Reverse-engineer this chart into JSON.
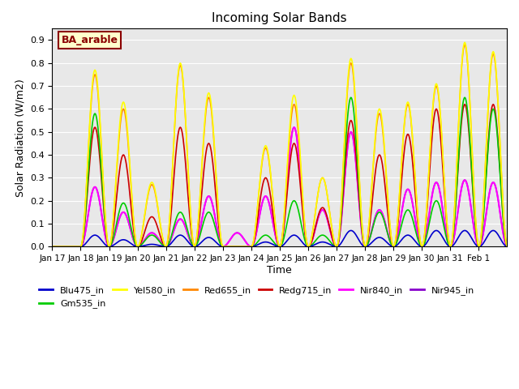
{
  "title": "Incoming Solar Bands",
  "xlabel": "Time",
  "ylabel": "Solar Radiation (W/m2)",
  "annotation": "BA_arable",
  "ylim": [
    0,
    0.95
  ],
  "yticks": [
    0.0,
    0.1,
    0.2,
    0.3,
    0.4,
    0.5,
    0.6,
    0.7,
    0.8,
    0.9
  ],
  "bg_color": "#e8e8e8",
  "series": {
    "Blu475_in": {
      "color": "#0000cc",
      "lw": 1.2
    },
    "Gm535_in": {
      "color": "#00cc00",
      "lw": 1.2
    },
    "Yel580_in": {
      "color": "#ffff00",
      "lw": 1.2
    },
    "Red655_in": {
      "color": "#ff8800",
      "lw": 1.2
    },
    "Redg715_in": {
      "color": "#cc0000",
      "lw": 1.2
    },
    "Nir840_in": {
      "color": "#ff00ff",
      "lw": 1.5
    },
    "Nir945_in": {
      "color": "#8800cc",
      "lw": 1.2
    }
  },
  "x_tick_labels": [
    "Jan 17",
    "Jan 18",
    "Jan 19",
    "Jan 20",
    "Jan 21",
    "Jan 22",
    "Jan 23",
    "Jan 24",
    "Jan 25",
    "Jan 26",
    "Jan 27",
    "Jan 28",
    "Jan 29",
    "Jan 30",
    "Jan 31",
    "Feb 1"
  ],
  "num_days": 16,
  "pts_per_day": 48,
  "day_peaks": {
    "Yel580_in": [
      0.0,
      0.77,
      0.63,
      0.28,
      0.8,
      0.67,
      0.0,
      0.44,
      0.66,
      0.3,
      0.82,
      0.6,
      0.63,
      0.71,
      0.89,
      0.85
    ],
    "Red655_in": [
      0.0,
      0.75,
      0.6,
      0.27,
      0.79,
      0.65,
      0.0,
      0.43,
      0.62,
      0.3,
      0.8,
      0.58,
      0.62,
      0.7,
      0.88,
      0.84
    ],
    "Redg715_in": [
      0.0,
      0.52,
      0.4,
      0.13,
      0.52,
      0.45,
      0.0,
      0.3,
      0.45,
      0.17,
      0.55,
      0.4,
      0.49,
      0.6,
      0.62,
      0.62
    ],
    "Nir840_in": [
      0.0,
      0.26,
      0.15,
      0.06,
      0.12,
      0.22,
      0.06,
      0.22,
      0.52,
      0.16,
      0.5,
      0.16,
      0.25,
      0.28,
      0.29,
      0.28
    ],
    "Nir945_in": [
      0.0,
      0.26,
      0.15,
      0.06,
      0.12,
      0.22,
      0.06,
      0.22,
      0.52,
      0.16,
      0.5,
      0.16,
      0.25,
      0.28,
      0.29,
      0.28
    ],
    "Blu475_in": [
      0.0,
      0.05,
      0.03,
      0.01,
      0.05,
      0.04,
      0.0,
      0.02,
      0.05,
      0.02,
      0.07,
      0.04,
      0.05,
      0.07,
      0.07,
      0.07
    ],
    "Gm535_in": [
      0.0,
      0.58,
      0.19,
      0.05,
      0.15,
      0.15,
      0.0,
      0.05,
      0.2,
      0.05,
      0.65,
      0.15,
      0.16,
      0.2,
      0.65,
      0.6
    ]
  },
  "plot_order": [
    "Nir945_in",
    "Nir840_in",
    "Redg715_in",
    "Gm535_in",
    "Blu475_in",
    "Red655_in",
    "Yel580_in"
  ],
  "legend_order": [
    "Blu475_in",
    "Gm535_in",
    "Yel580_in",
    "Red655_in",
    "Redg715_in",
    "Nir840_in",
    "Nir945_in"
  ]
}
